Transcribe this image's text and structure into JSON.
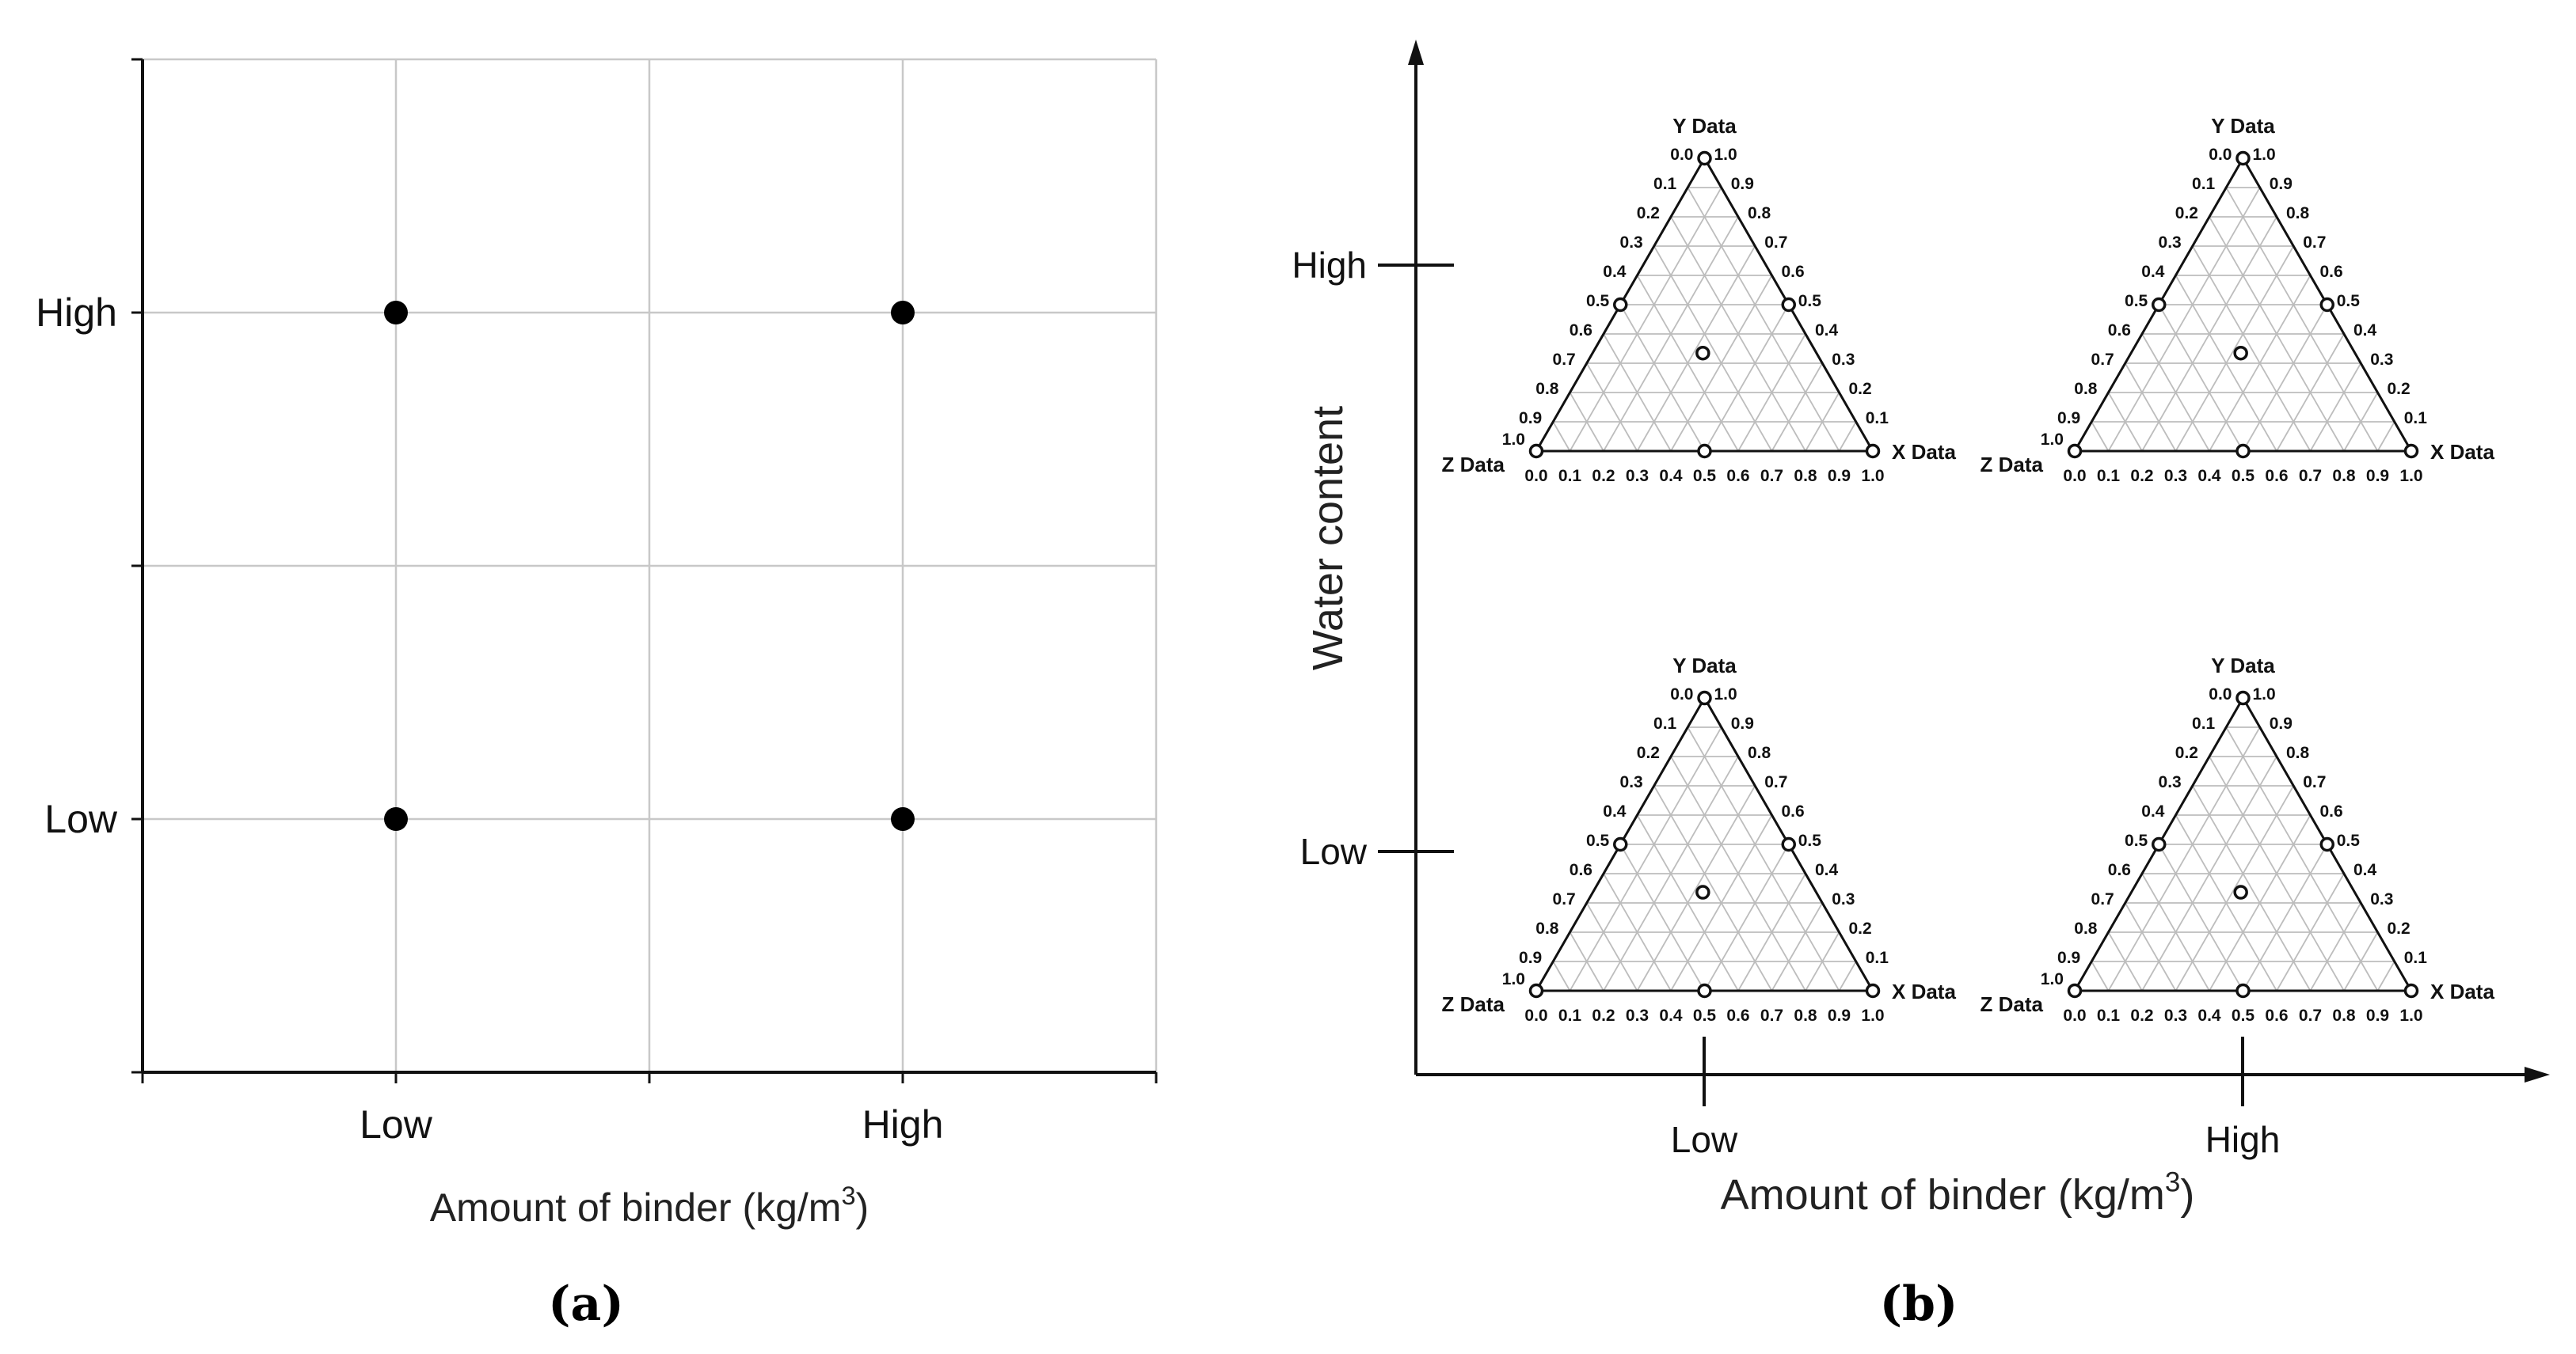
{
  "panel_labels": {
    "a": "(a)",
    "b": "(b)"
  },
  "chart_data": [
    {
      "type": "scatter",
      "panel": "(a)",
      "xlabel": "Amount of binder (kg/m",
      "xlabel_sup": "3",
      "xlabel_close": ")",
      "ylabel": "",
      "x_tick_labels": [
        "Low",
        "High"
      ],
      "y_tick_labels": [
        "Low",
        "High"
      ],
      "xlim": [
        0,
        4
      ],
      "ylim": [
        0,
        4
      ],
      "grid": true,
      "points": [
        {
          "x": "Low",
          "y": "High"
        },
        {
          "x": "High",
          "y": "High"
        },
        {
          "x": "Low",
          "y": "Low"
        },
        {
          "x": "High",
          "y": "Low"
        }
      ]
    },
    {
      "type": "ternary-grid",
      "panel": "(b)",
      "xlabel": "Amount of binder (kg/m",
      "xlabel_sup": "3",
      "xlabel_close": ")",
      "ylabel": "Water content",
      "x_tick_labels": [
        "Low",
        "High"
      ],
      "y_tick_labels": [
        "High",
        "Low"
      ],
      "ternary_axis_labels": {
        "top": "Y Data",
        "right": "X Data",
        "left": "Z Data"
      },
      "ternary_ticks": [
        "0.0",
        "0.1",
        "0.2",
        "0.3",
        "0.4",
        "0.5",
        "0.6",
        "0.7",
        "0.8",
        "0.9",
        "1.0"
      ],
      "ternary_points": [
        {
          "x": 0,
          "y": 1,
          "z": 0
        },
        {
          "x": 1,
          "y": 0,
          "z": 0
        },
        {
          "x": 0,
          "y": 0,
          "z": 1
        },
        {
          "x": 0.5,
          "y": 0.5,
          "z": 0
        },
        {
          "x": 0,
          "y": 0.5,
          "z": 0.5
        },
        {
          "x": 0.5,
          "y": 0,
          "z": 0.5
        },
        {
          "x": 0.333,
          "y": 0.333,
          "z": 0.333
        }
      ],
      "cells": [
        {
          "binder": "Low",
          "water": "High"
        },
        {
          "binder": "High",
          "water": "High"
        },
        {
          "binder": "Low",
          "water": "Low"
        },
        {
          "binder": "High",
          "water": "Low"
        }
      ]
    }
  ]
}
